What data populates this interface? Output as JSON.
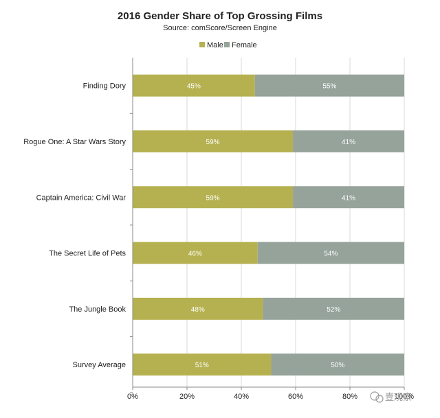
{
  "chart_data": {
    "type": "bar",
    "orientation": "horizontal",
    "stacked": true,
    "title": "2016 Gender Share of Top Grossing Films",
    "subtitle": "Source: comScore/Screen Engine",
    "categories": [
      "Finding Dory",
      "Rogue One: A Star Wars Story",
      "Captain America: Civil War",
      "The Secret Life of Pets",
      "The Jungle Book",
      "Survey Average"
    ],
    "series": [
      {
        "name": "Male",
        "color": "#b5b150",
        "values": [
          45,
          59,
          59,
          46,
          48,
          51
        ],
        "labels": [
          "45%",
          "59%",
          "59%",
          "46%",
          "48%",
          "51%"
        ]
      },
      {
        "name": "Female",
        "color": "#95a39b",
        "values": [
          55,
          41,
          41,
          54,
          52,
          50
        ],
        "labels": [
          "55%",
          "41%",
          "41%",
          "54%",
          "52%",
          "50%"
        ]
      }
    ],
    "xlim": [
      0,
      100
    ],
    "xticks": [
      "0%",
      "20%",
      "40%",
      "60%",
      "80%",
      "100%"
    ],
    "legend_position": "top-center",
    "grid": true
  },
  "watermark": {
    "text": "壹观察"
  }
}
